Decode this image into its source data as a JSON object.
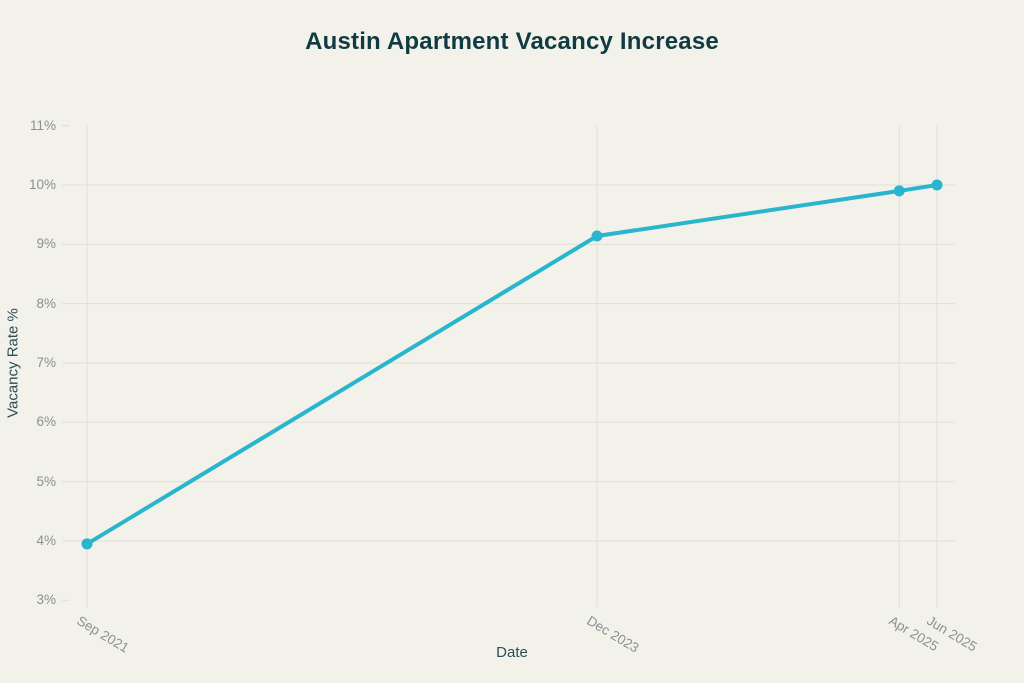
{
  "chart_data": {
    "type": "line",
    "title": "Austin Apartment Vacancy Increase",
    "xlabel": "Date",
    "ylabel": "Vacancy Rate %",
    "categories": [
      "Sep 2021",
      "Dec 2023",
      "Apr 2025",
      "Jun 2025"
    ],
    "x_months_from_start": [
      0,
      27,
      43,
      45
    ],
    "series": [
      {
        "name": "Vacancy Rate",
        "values": [
          3.95,
          9.14,
          9.9,
          10.0
        ]
      }
    ],
    "y_tick_values": [
      3,
      4,
      5,
      6,
      7,
      8,
      9,
      10,
      11
    ],
    "y_tick_labels": [
      "3%",
      "4%",
      "5%",
      "6%",
      "7%",
      "8%",
      "9%",
      "10%",
      "11%"
    ],
    "y_full_gridline_values": [
      4,
      5,
      6,
      7,
      8,
      9,
      10
    ],
    "y_tick_only_values": [
      3,
      11
    ],
    "ylim": [
      3,
      11
    ],
    "xlim_months": [
      0,
      45
    ],
    "grid": "on",
    "legend": "none",
    "colors": {
      "background": "#f2f1ea",
      "line": "#29b5ce",
      "point": "#29b5ce",
      "gridline": "#e1dfd5",
      "tick_label": "#8b9094",
      "axis_title": "#2d4d57",
      "title": "#113b43"
    }
  }
}
